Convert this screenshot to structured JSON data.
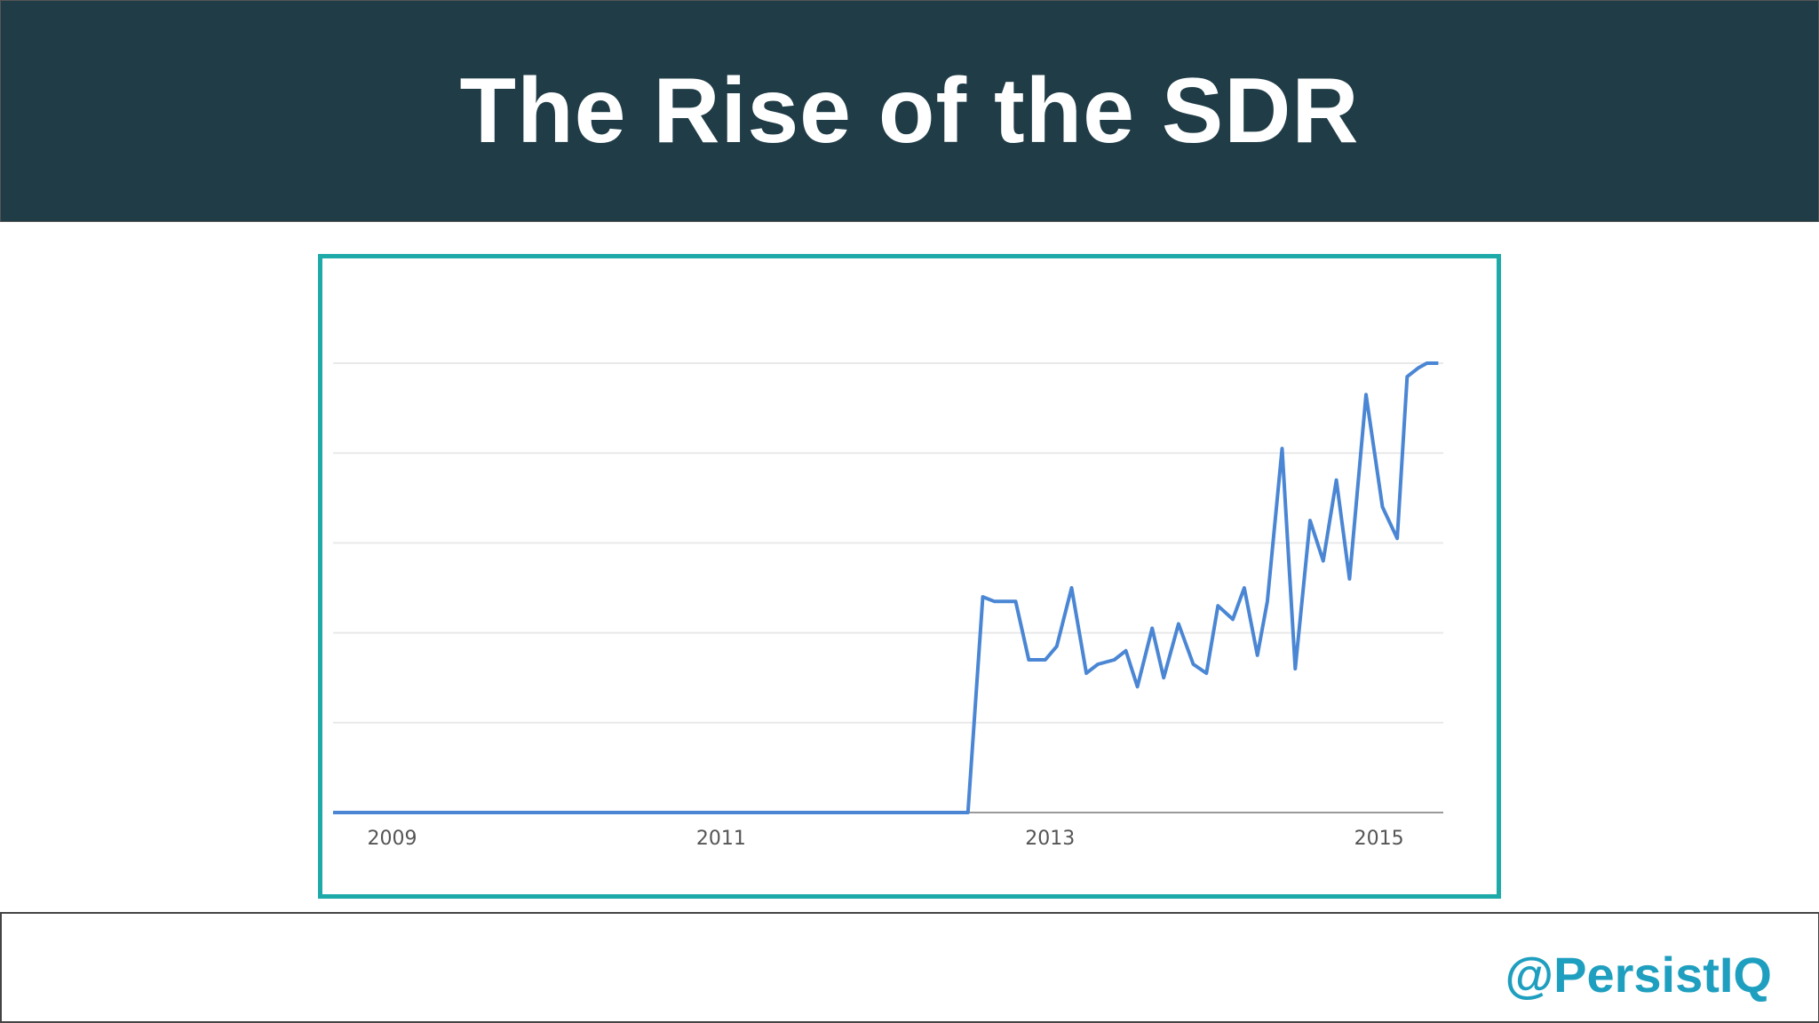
{
  "header": {
    "title": "The Rise of the SDR"
  },
  "footer": {
    "handle": "@PersistIQ"
  },
  "colors": {
    "header_bg": "#1f3c47",
    "frame": "#1faaaa",
    "line": "#4a86d4",
    "handle": "#1f9fbf"
  },
  "chart_data": {
    "type": "line",
    "title": "",
    "xlabel": "",
    "ylabel": "",
    "xlim": [
      2008.9,
      2015.65
    ],
    "ylim": [
      0,
      100
    ],
    "grid": true,
    "yticks": [
      0,
      20,
      40,
      60,
      80,
      100
    ],
    "xticks": [
      "2009",
      "2011",
      "2013",
      "2015"
    ],
    "series": [
      {
        "x": [
          2008.9,
          2012.76,
          2012.85,
          2012.92,
          2013.05,
          2013.13,
          2013.23,
          2013.3,
          2013.39,
          2013.48,
          2013.55,
          2013.65,
          2013.72,
          2013.79,
          2013.88,
          2013.95,
          2014.04,
          2014.13,
          2014.21,
          2014.28,
          2014.37,
          2014.44,
          2014.52,
          2014.58,
          2014.67,
          2014.75,
          2014.84,
          2014.92,
          2015.0,
          2015.08,
          2015.18,
          2015.28,
          2015.37,
          2015.43,
          2015.5,
          2015.55,
          2015.62
        ],
        "y": [
          0,
          0,
          48,
          47,
          47,
          34,
          34,
          37,
          50,
          31,
          33,
          34,
          36,
          28,
          41,
          30,
          42,
          33,
          31,
          46,
          43,
          50,
          35,
          47,
          81,
          32,
          65,
          56,
          74,
          52,
          93,
          68,
          61,
          97,
          99,
          100,
          100
        ]
      }
    ]
  }
}
